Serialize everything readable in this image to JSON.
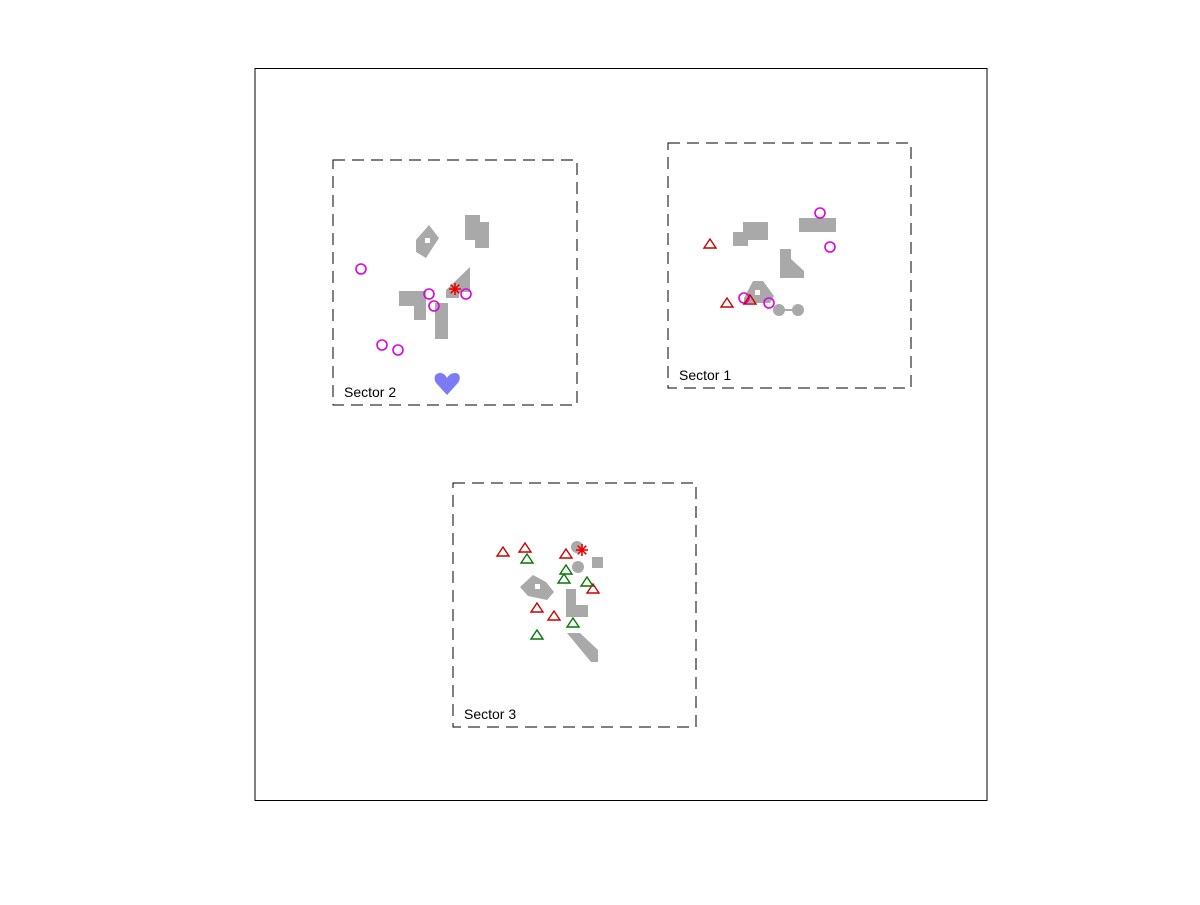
{
  "colors": {
    "frame": "#000000",
    "obstacle": "#a9a9a9",
    "target": "#7b7bf5",
    "circle_marker": "#e000e0",
    "red_triangle": "#cc0000",
    "green_triangle": "#007a00",
    "star": "#ee0000",
    "background": "#ffffff"
  },
  "sectors": [
    {
      "id": "sector-2",
      "label": "Sector 2"
    },
    {
      "id": "sector-1",
      "label": "Sector 1"
    },
    {
      "id": "sector-3",
      "label": "Sector 3"
    }
  ],
  "icons": {
    "circle_marker": "hollow-circle-icon",
    "red_triangle": "red-triangle-icon",
    "green_triangle": "green-triangle-icon",
    "star": "asterisk-star-icon",
    "target": "heart-shaped-target-icon"
  }
}
